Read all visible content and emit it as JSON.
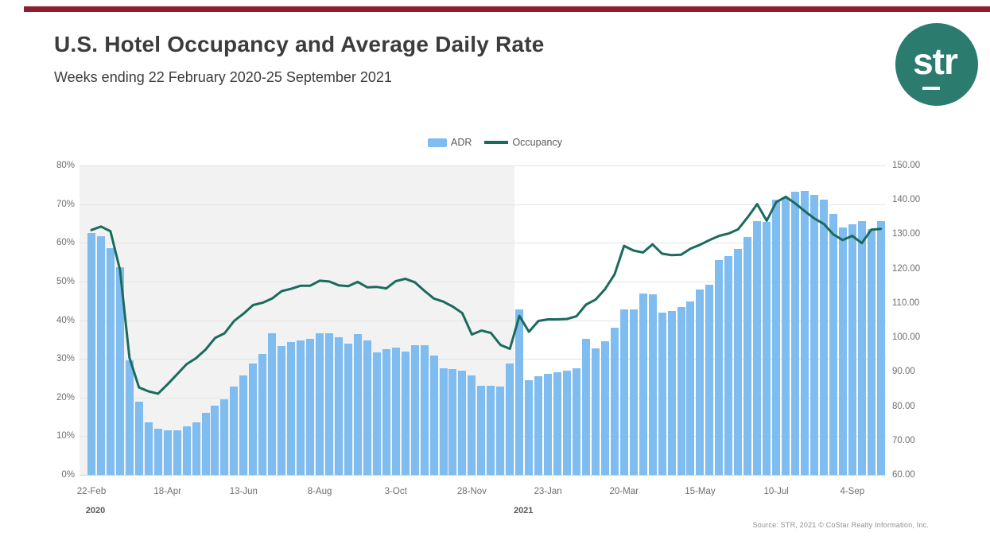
{
  "page": {
    "title": "U.S. Hotel Occupancy and Average Daily Rate",
    "subtitle": "Weeks ending 22 February 2020-25 September 2021",
    "source": "Source: STR, 2021 © CoStar Realty Information, Inc.",
    "accent_bar_color": "#8d1f2d"
  },
  "logo": {
    "text": "str",
    "bg_color": "#2b7c6f",
    "text_color": "#ffffff"
  },
  "legend": [
    {
      "label": "ADR",
      "type": "bar",
      "color": "#7fbcf0"
    },
    {
      "label": "Occupancy",
      "type": "line",
      "color": "#1a6b5d"
    }
  ],
  "chart_data": {
    "type": "combo",
    "title": "U.S. Hotel Occupancy and Average Daily Rate",
    "subtitle": "Weeks ending 22 February 2020-25 September 2021",
    "grid": true,
    "legend_position": "top-center",
    "categories": [
      "2020-02-22",
      "2020-02-29",
      "2020-03-07",
      "2020-03-14",
      "2020-03-21",
      "2020-03-28",
      "2020-04-04",
      "2020-04-11",
      "2020-04-18",
      "2020-04-25",
      "2020-05-02",
      "2020-05-09",
      "2020-05-16",
      "2020-05-23",
      "2020-05-30",
      "2020-06-06",
      "2020-06-13",
      "2020-06-20",
      "2020-06-27",
      "2020-07-04",
      "2020-07-11",
      "2020-07-18",
      "2020-07-25",
      "2020-08-01",
      "2020-08-08",
      "2020-08-15",
      "2020-08-22",
      "2020-08-29",
      "2020-09-05",
      "2020-09-12",
      "2020-09-19",
      "2020-09-26",
      "2020-10-03",
      "2020-10-10",
      "2020-10-17",
      "2020-10-24",
      "2020-10-31",
      "2020-11-07",
      "2020-11-14",
      "2020-11-21",
      "2020-11-28",
      "2020-12-05",
      "2020-12-12",
      "2020-12-19",
      "2020-12-26",
      "2021-01-02",
      "2021-01-09",
      "2021-01-16",
      "2021-01-23",
      "2021-01-30",
      "2021-02-06",
      "2021-02-13",
      "2021-02-20",
      "2021-02-27",
      "2021-03-06",
      "2021-03-13",
      "2021-03-20",
      "2021-03-27",
      "2021-04-03",
      "2021-04-10",
      "2021-04-17",
      "2021-04-24",
      "2021-05-01",
      "2021-05-08",
      "2021-05-15",
      "2021-05-22",
      "2021-05-29",
      "2021-06-05",
      "2021-06-12",
      "2021-06-19",
      "2021-06-26",
      "2021-07-03",
      "2021-07-10",
      "2021-07-17",
      "2021-07-24",
      "2021-07-31",
      "2021-08-07",
      "2021-08-14",
      "2021-08-21",
      "2021-08-28",
      "2021-09-04",
      "2021-09-11",
      "2021-09-18",
      "2021-09-25"
    ],
    "series": [
      {
        "name": "ADR",
        "type": "bar",
        "axis": "right",
        "color": "#7fbcf0",
        "values": [
          130.4,
          129.5,
          126.0,
          120.4,
          93.4,
          81.2,
          75.2,
          73.4,
          72.9,
          73.0,
          74.2,
          75.2,
          78.0,
          80.2,
          81.9,
          85.6,
          88.9,
          92.4,
          95.1,
          101.1,
          97.4,
          98.7,
          99.0,
          99.5,
          101.1,
          101.3,
          100.1,
          98.1,
          100.9,
          99.1,
          95.6,
          96.5,
          97.1,
          95.9,
          97.7,
          97.8,
          94.6,
          91.1,
          90.8,
          90.3,
          88.9,
          86.0,
          86.0,
          85.7,
          92.3,
          108.1,
          87.6,
          88.6,
          89.5,
          89.9,
          90.3,
          91.1,
          99.6,
          96.9,
          98.8,
          102.7,
          108.1,
          108.1,
          112.8,
          112.6,
          107.1,
          107.6,
          108.9,
          110.5,
          114.0,
          115.3,
          122.5,
          123.7,
          125.6,
          129.2,
          133.7,
          133.5,
          140.1,
          140.5,
          142.3,
          142.6,
          141.5,
          140.1,
          135.9,
          132.0,
          132.9,
          133.9,
          131.4,
          133.9
        ]
      },
      {
        "name": "Occupancy",
        "type": "line",
        "axis": "left",
        "color": "#1a6b5d",
        "values": [
          63.3,
          64.2,
          63.0,
          53.0,
          30.3,
          22.6,
          21.6,
          21.0,
          23.4,
          26.0,
          28.6,
          30.2,
          32.4,
          35.4,
          36.6,
          39.8,
          41.7,
          43.9,
          44.5,
          45.6,
          47.5,
          48.1,
          48.9,
          48.9,
          50.2,
          50.0,
          49.0,
          48.8,
          49.9,
          48.5,
          48.6,
          48.2,
          50.1,
          50.7,
          49.8,
          47.6,
          45.6,
          44.8,
          43.5,
          41.8,
          36.3,
          37.3,
          36.7,
          33.6,
          32.6,
          41.1,
          37.0,
          39.8,
          40.2,
          40.2,
          40.3,
          41.0,
          44.0,
          45.3,
          48.0,
          51.8,
          59.2,
          58.0,
          57.5,
          59.6,
          57.2,
          56.8,
          56.9,
          58.5,
          59.5,
          60.7,
          61.8,
          62.4,
          63.5,
          66.6,
          70.0,
          65.7,
          70.5,
          71.9,
          70.2,
          68.2,
          66.3,
          64.9,
          62.2,
          60.7,
          61.8,
          59.9,
          63.4,
          63.6
        ]
      }
    ],
    "left_axis": {
      "unit": "%",
      "min": 0,
      "max": 80,
      "ticks": [
        "80%",
        "70%",
        "60%",
        "50%",
        "40%",
        "30%",
        "20%",
        "10%",
        "0%"
      ]
    },
    "right_axis": {
      "min": 60,
      "max": 150,
      "ticks": [
        "150.00",
        "140.00",
        "130.00",
        "120.00",
        "110.00",
        "100.00",
        "90.00",
        "80.00",
        "70.00",
        "60.00"
      ]
    },
    "x_ticks": [
      {
        "label": "22-Feb",
        "index": 0
      },
      {
        "label": "18-Apr",
        "index": 8
      },
      {
        "label": "13-Jun",
        "index": 16
      },
      {
        "label": "8-Aug",
        "index": 24
      },
      {
        "label": "3-Oct",
        "index": 32
      },
      {
        "label": "28-Nov",
        "index": 40
      },
      {
        "label": "23-Jan",
        "index": 48
      },
      {
        "label": "20-Mar",
        "index": 56
      },
      {
        "label": "15-May",
        "index": 64
      },
      {
        "label": "10-Jul",
        "index": 72
      },
      {
        "label": "4-Sep",
        "index": 80
      }
    ],
    "year_labels": [
      {
        "label": "2020",
        "index": 0
      },
      {
        "label": "2021",
        "index": 45
      }
    ],
    "shaded_region": {
      "from_index": 0,
      "to_index": 44,
      "color": "#f2f2f2",
      "note": "2020 weeks shaded"
    }
  }
}
